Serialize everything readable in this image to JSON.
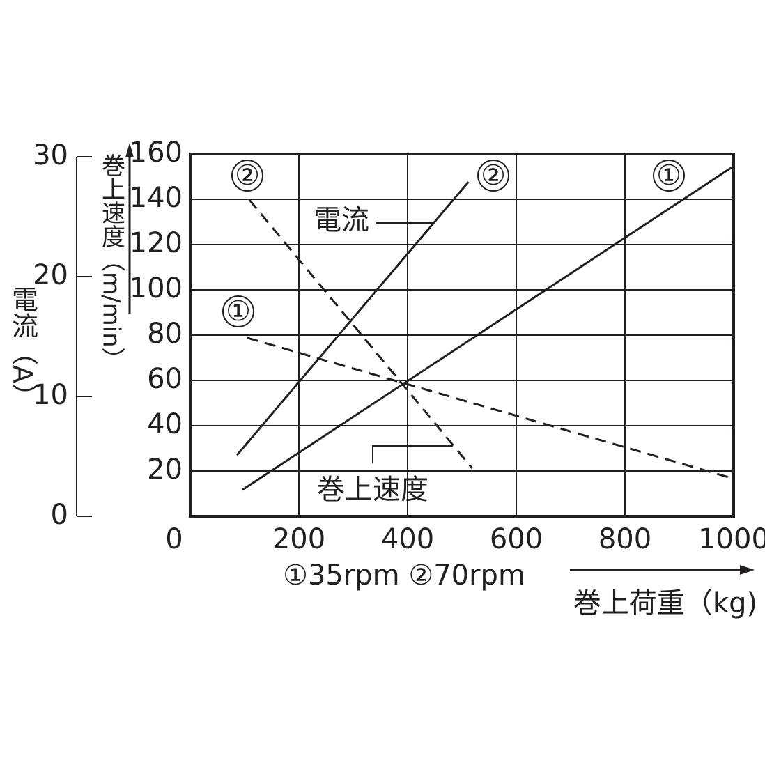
{
  "chart_data": {
    "type": "line",
    "xlabel": "巻上荷重（kg)",
    "ylabel": "巻上速度（m/min）",
    "y2label": "電流（A）",
    "xlim": [
      0,
      1000
    ],
    "xticks": [
      0,
      200,
      400,
      600,
      800,
      1000
    ],
    "ylim": [
      0,
      160
    ],
    "yticks": [
      20,
      40,
      60,
      80,
      100,
      120,
      140,
      160
    ],
    "y2lim": [
      0,
      30
    ],
    "y2ticks": [
      0,
      10,
      20,
      30
    ],
    "grid": true,
    "annotations": [
      "電流",
      "巻上速度",
      "①35rpm ②70rpm"
    ],
    "series": [
      {
        "name": "②",
        "axis": "y2",
        "color": "#231f20",
        "style": "solid",
        "x": [
          86,
          512
        ],
        "values": [
          5.1,
          27.9
        ]
      },
      {
        "name": "①",
        "axis": "y2",
        "color": "#231f20",
        "style": "solid",
        "x": [
          96,
          996
        ],
        "values": [
          2.2,
          29.1
        ]
      },
      {
        "name": "②",
        "color": "#231f20",
        "style": "dashed",
        "x": [
          109,
          519
        ],
        "values": [
          139.7,
          21.2
        ]
      },
      {
        "name": "①",
        "color": "#231f20",
        "style": "dashed",
        "x": [
          105,
          1000
        ],
        "values": [
          78.8,
          16.6
        ]
      }
    ]
  }
}
